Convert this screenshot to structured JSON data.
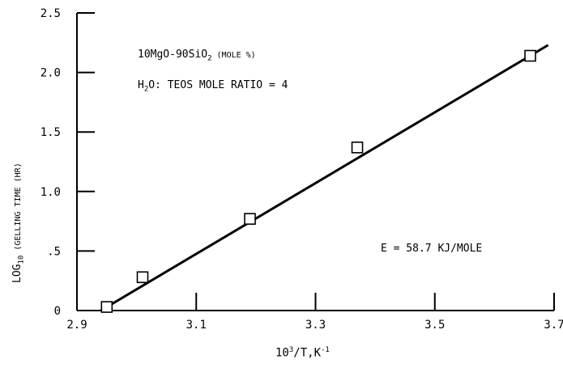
{
  "chart_data": {
    "type": "line",
    "title": "",
    "xlabel": {
      "base": "10",
      "sup": "3",
      "mid": "/T,K",
      "sup2": "-1"
    },
    "ylabel": {
      "base": "LOG",
      "sub": "10",
      "rest": " (GELLING TIME (HR)"
    },
    "xlim": [
      2.9,
      3.7
    ],
    "ylim": [
      0,
      2.5
    ],
    "xticks": [
      2.9,
      3.1,
      3.3,
      3.5,
      3.7
    ],
    "xtick_labels": [
      "2.9",
      "3.1",
      "3.3",
      "3.5",
      "3.7"
    ],
    "yticks": [
      0,
      0.5,
      1.0,
      1.5,
      2.0,
      2.5
    ],
    "ytick_labels": [
      "0",
      ".5",
      "1.0",
      "1.5",
      "2.0",
      "2.5"
    ],
    "grid": false,
    "series": [
      {
        "x": [
          2.95,
          3.01,
          3.19,
          3.37,
          3.66
        ],
        "y": [
          0.03,
          0.28,
          0.77,
          1.37,
          2.14
        ],
        "marker": "open-square",
        "color": "#000000"
      }
    ],
    "fit_line": {
      "x": [
        2.94,
        3.69
      ],
      "y": [
        0.0,
        2.23
      ]
    },
    "annotations": {
      "composition": {
        "a": "10MgO-90SiO",
        "sub": "2",
        "b": " (MOLE %)"
      },
      "ratio": {
        "a": "H",
        "sub": "2",
        "b": "O: TEOS MOLE RATIO = 4"
      },
      "energy": "E = 58.7 KJ/MOLE"
    }
  }
}
